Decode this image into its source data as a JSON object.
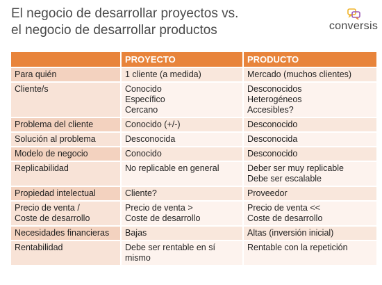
{
  "title": {
    "line1": "El negocio de desarrollar proyectos vs.",
    "line2": "el negocio de desarrollar productos"
  },
  "logo": {
    "text": "conversis",
    "icon": "speech-bubbles-icon",
    "colors": [
      "#f0b429",
      "#9b59b6",
      "#e8843b"
    ]
  },
  "colors": {
    "header": "#e8843b",
    "row_dark": "#f3d2bf",
    "row_light": "#fdf3ee"
  },
  "table": {
    "headers": [
      "",
      "PROYECTO",
      "PRODUCTO"
    ],
    "rows": [
      {
        "label": "Para quién",
        "proyecto": [
          "1 cliente (a medida)"
        ],
        "producto": [
          "Mercado (muchos clientes)"
        ]
      },
      {
        "label": "Cliente/s",
        "proyecto": [
          "Conocido",
          "Específico",
          "Cercano"
        ],
        "producto": [
          "Desconocidos",
          "Heterogéneos",
          "Accesibles?"
        ]
      },
      {
        "label": "Problema del cliente",
        "proyecto": [
          "Conocido (+/-)"
        ],
        "producto": [
          "Desconocido"
        ]
      },
      {
        "label": "Solución al problema",
        "proyecto": [
          "Desconocida"
        ],
        "producto": [
          "Desconocida"
        ]
      },
      {
        "label": "Modelo de negocio",
        "proyecto": [
          "Conocido"
        ],
        "producto": [
          "Desconocido"
        ]
      },
      {
        "label": "Replicabilidad",
        "proyecto": [
          "No replicable en general"
        ],
        "producto": [
          "Deber ser muy replicable",
          "Debe ser escalable"
        ]
      },
      {
        "label": "Propiedad intelectual",
        "proyecto": [
          "Cliente?"
        ],
        "producto": [
          "Proveedor"
        ]
      },
      {
        "label": "Precio de venta /\nCoste de desarrollo",
        "proyecto": [
          "Precio de venta >",
          "Coste de desarrollo"
        ],
        "producto": [
          "Precio de venta <<",
          "Coste de desarrollo"
        ]
      },
      {
        "label": "Necesidades financieras",
        "proyecto": [
          "Bajas"
        ],
        "producto": [
          "Altas (inversión inicial)"
        ]
      },
      {
        "label": "Rentabilidad",
        "proyecto": [
          "Debe ser rentable en sí",
          "mismo"
        ],
        "producto": [
          "Rentable con la repetición"
        ]
      }
    ]
  }
}
